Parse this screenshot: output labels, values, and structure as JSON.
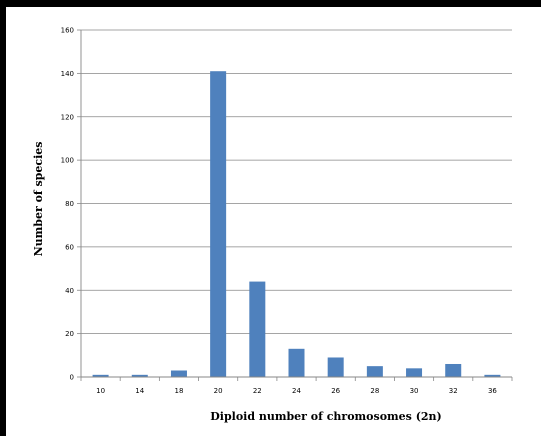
{
  "chart_data": {
    "type": "bar",
    "title": "",
    "xlabel": "Diploid number of chromosomes (2n)",
    "ylabel": "Number of species",
    "categories": [
      "10",
      "14",
      "18",
      "20",
      "22",
      "24",
      "26",
      "28",
      "30",
      "32",
      "36"
    ],
    "values": [
      1,
      1,
      3,
      141,
      44,
      13,
      9,
      5,
      4,
      6,
      1
    ],
    "ylim": [
      0,
      160
    ],
    "yticks": [
      "0",
      "20",
      "40",
      "60",
      "80",
      "100",
      "120",
      "140",
      "160"
    ],
    "grid": true,
    "legend": "none",
    "bar_color": "#4f81bd"
  }
}
